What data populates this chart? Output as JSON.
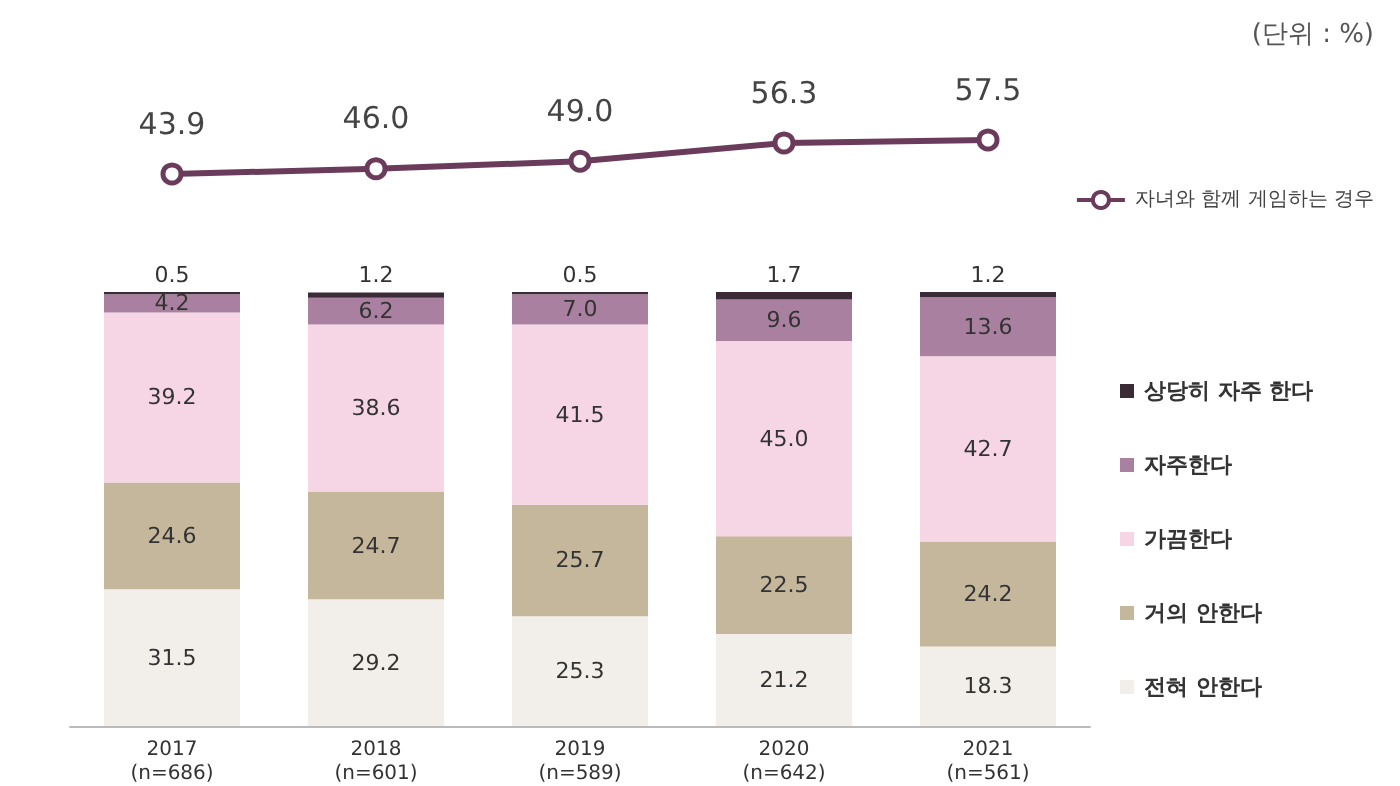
{
  "chart_data": [
    {
      "type": "line",
      "categories": [
        null,
        null,
        null,
        null,
        null
      ],
      "series": [
        {
          "name": "자녀와 함께 게임하는 경우",
          "color": "#6b3b5b",
          "values": [
            43.9,
            46.0,
            49.0,
            56.3,
            57.5
          ],
          "value_labels": [
            "43.9",
            "46.0",
            "49.0",
            "56.3",
            "57.5"
          ]
        }
      ],
      "marker": "circle",
      "tick_labels": false,
      "legend": "right",
      "annotations": [
        "(단위 : %)"
      ]
    },
    {
      "type": "bar",
      "stacked": true,
      "categories": [
        "2017\n(n=686)",
        "2018\n(n=601)",
        "2019\n(n=589)",
        "2020\n(n=642)",
        "2021\n(n=561)"
      ],
      "series": [
        {
          "name": "전혀 안한다",
          "color": "#f2eee9",
          "values": [
            31.5,
            29.2,
            25.3,
            21.2,
            18.3
          ],
          "value_labels": [
            "31.5",
            "29.2",
            "25.3",
            "21.2",
            "18.3"
          ]
        },
        {
          "name": "거의 안한다",
          "color": "#c4b79c",
          "values": [
            24.6,
            24.7,
            25.7,
            22.5,
            24.2
          ],
          "value_labels": [
            "24.6",
            "24.7",
            "25.7",
            "22.5",
            "24.2"
          ]
        },
        {
          "name": "가끔한다",
          "color": "#f6d6e5",
          "values": [
            39.2,
            38.6,
            41.5,
            45.0,
            42.7
          ],
          "value_labels": [
            "39.2",
            "38.6",
            "41.5",
            "45.0",
            "42.7"
          ]
        },
        {
          "name": "자주한다",
          "color": "#a9809f",
          "values": [
            4.2,
            6.2,
            7.0,
            9.6,
            13.6
          ],
          "value_labels": [
            "4.2",
            "6.2",
            "7.0",
            "9.6",
            "13.6"
          ]
        },
        {
          "name": "상당히 자주 한다",
          "color": "#3b2b36",
          "values": [
            0.5,
            1.2,
            0.5,
            1.7,
            1.2
          ],
          "value_labels": [
            "0.5",
            "1.2",
            "0.5",
            "1.7",
            "1.2"
          ]
        }
      ],
      "ylim": [
        0,
        100
      ],
      "tick_labels": "x",
      "legend": "right"
    }
  ]
}
